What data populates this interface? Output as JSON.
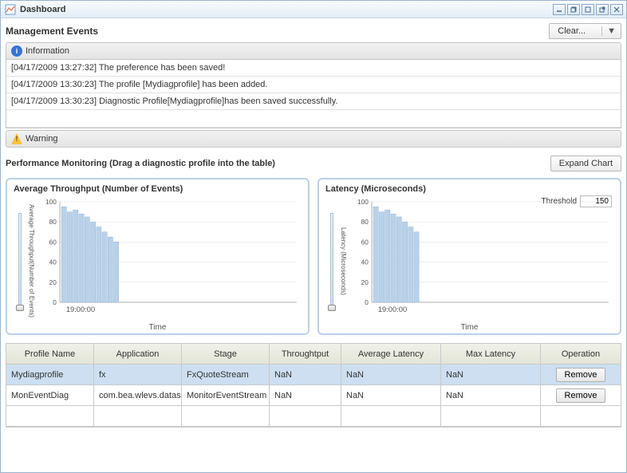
{
  "window": {
    "title": "Dashboard"
  },
  "management_events": {
    "label": "Management Events",
    "clear_button": "Clear...",
    "info_label": "Information",
    "warning_label": "Warning",
    "messages": [
      "[04/17/2009 13:27:32] The preference has been saved!",
      "[04/17/2009 13:30:23] The profile [Mydiagprofile] has been added.",
      "[04/17/2009 13:30:23] Diagnostic Profile[Mydiagprofile]has been saved successfully."
    ]
  },
  "perf": {
    "title": "Performance Monitoring (Drag a diagnostic profile into the table)",
    "expand_button": "Expand Chart",
    "throughput_chart": {
      "title": "Average Throughput (Number of Events)",
      "ylabel": "Average Throughput(Number of Events)",
      "xlabel": "Time",
      "ylim": [
        0,
        100
      ],
      "ytick_step": 20,
      "xticks": [
        "19:00:00"
      ],
      "bar_color": "#b9d1e8",
      "grid_color": "#e0e0e0",
      "text_color": "#555555",
      "bars": [
        95,
        90,
        92,
        88,
        85,
        80,
        75,
        70,
        65,
        60
      ]
    },
    "latency_chart": {
      "title": "Latency (Microseconds)",
      "ylabel": "Latency (Microseconds)",
      "xlabel": "Time",
      "ylim": [
        0,
        100
      ],
      "ytick_step": 20,
      "xticks": [
        "19:00:00"
      ],
      "bar_color": "#b9d1e8",
      "grid_color": "#e0e0e0",
      "text_color": "#555555",
      "bars": [
        95,
        90,
        92,
        88,
        85,
        80,
        75,
        70
      ],
      "threshold_label": "Threshold",
      "threshold_value": "150"
    }
  },
  "profile_table": {
    "columns": [
      "Profile Name",
      "Application",
      "Stage",
      "Throughtput",
      "Average Latency",
      "Max Latency",
      "Operation"
    ],
    "operation_label": "Remove",
    "rows": [
      {
        "selected": true,
        "cells": [
          "Mydiagprofile",
          "fx",
          "FxQuoteStream",
          "NaN",
          "NaN",
          "NaN"
        ]
      },
      {
        "selected": false,
        "cells": [
          "MonEventDiag",
          "com.bea.wlevs.dataservices",
          "MonitorEventStream",
          "NaN",
          "NaN",
          "NaN"
        ]
      }
    ]
  }
}
